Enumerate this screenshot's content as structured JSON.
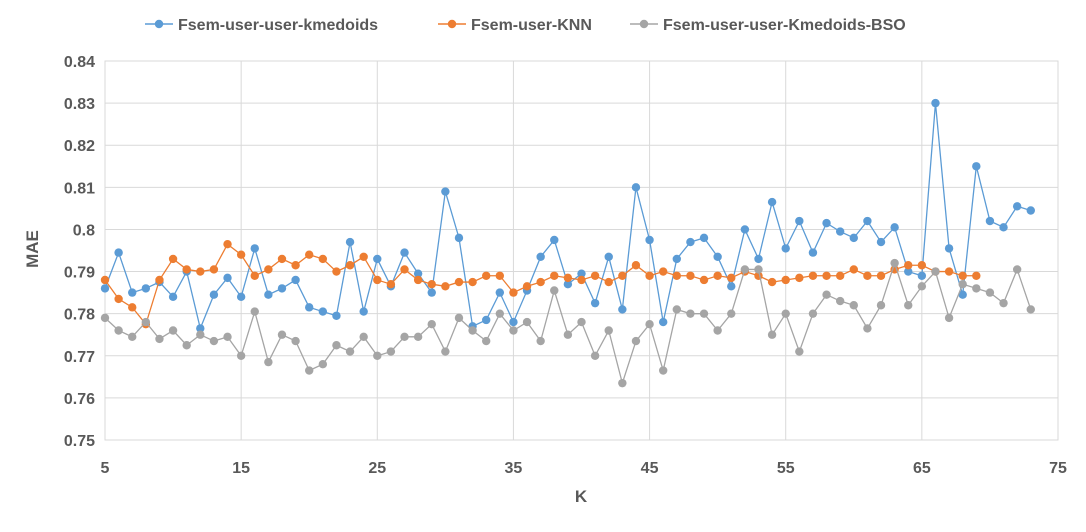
{
  "chart_data": {
    "type": "line",
    "xlabel": "K",
    "ylabel": "MAE",
    "xlim": [
      5,
      75
    ],
    "ylim": [
      0.75,
      0.84
    ],
    "xticks": [
      "5",
      "15",
      "25",
      "35",
      "45",
      "55",
      "65",
      "75"
    ],
    "yticks": [
      "0.75",
      "0.76",
      "0.77",
      "0.78",
      "0.79",
      "0.8",
      "0.81",
      "0.82",
      "0.83",
      "0.84"
    ],
    "grid": true,
    "legend_position": "top",
    "series": [
      {
        "name": "Fsem-user-user-kmedoids",
        "color": "#5b9bd5",
        "x": [
          5,
          6,
          7,
          8,
          9,
          10,
          11,
          12,
          13,
          14,
          15,
          16,
          17,
          18,
          19,
          20,
          21,
          22,
          23,
          24,
          25,
          26,
          27,
          28,
          29,
          30,
          31,
          32,
          33,
          34,
          35,
          36,
          37,
          38,
          39,
          40,
          41,
          42,
          43,
          44,
          45,
          46,
          47,
          48,
          49,
          50,
          51,
          52,
          53,
          54,
          55,
          56,
          57,
          58,
          59,
          60,
          61,
          62,
          63,
          64,
          65,
          66,
          67,
          68,
          69,
          70,
          71,
          72,
          73
        ],
        "y": [
          0.786,
          0.7945,
          0.785,
          0.786,
          0.7875,
          0.784,
          0.79,
          0.7765,
          0.7845,
          0.7885,
          0.784,
          0.7955,
          0.7845,
          0.786,
          0.788,
          0.7815,
          0.7805,
          0.7795,
          0.797,
          0.7805,
          0.793,
          0.7865,
          0.7945,
          0.7895,
          0.785,
          0.809,
          0.798,
          0.777,
          0.7785,
          0.785,
          0.778,
          0.7855,
          0.7935,
          0.7975,
          0.787,
          0.7895,
          0.7825,
          0.7935,
          0.781,
          0.81,
          0.7975,
          0.778,
          0.793,
          0.797,
          0.798,
          0.7935,
          0.7865,
          0.8,
          0.793,
          0.8065,
          0.7955,
          0.802,
          0.7945,
          0.8015,
          0.7995,
          0.798,
          0.802,
          0.797,
          0.8005,
          0.79,
          0.789,
          0.83,
          0.7955,
          0.7845,
          0.815,
          0.802,
          0.8005,
          0.8055,
          0.8045
        ]
      },
      {
        "name": "Fsem-user-KNN",
        "color": "#ed7d31",
        "x": [
          5,
          6,
          7,
          8,
          9,
          10,
          11,
          12,
          13,
          14,
          15,
          16,
          17,
          18,
          19,
          20,
          21,
          22,
          23,
          24,
          25,
          26,
          27,
          28,
          29,
          30,
          31,
          32,
          33,
          34,
          35,
          36,
          37,
          38,
          39,
          40,
          41,
          42,
          43,
          44,
          45,
          46,
          47,
          48,
          49,
          50,
          51,
          52,
          53,
          54,
          55,
          56,
          57,
          58,
          59,
          60,
          61,
          62,
          63,
          64,
          65,
          66,
          67,
          68,
          69
        ],
        "y": [
          0.788,
          0.7835,
          0.7815,
          0.7775,
          0.788,
          0.793,
          0.7905,
          0.79,
          0.7905,
          0.7965,
          0.794,
          0.789,
          0.7905,
          0.793,
          0.7915,
          0.794,
          0.793,
          0.79,
          0.7915,
          0.7935,
          0.788,
          0.787,
          0.7905,
          0.788,
          0.787,
          0.7865,
          0.7875,
          0.7875,
          0.789,
          0.789,
          0.785,
          0.7865,
          0.7875,
          0.789,
          0.7885,
          0.788,
          0.789,
          0.7875,
          0.789,
          0.7915,
          0.789,
          0.79,
          0.789,
          0.789,
          0.788,
          0.789,
          0.7885,
          0.79,
          0.789,
          0.7875,
          0.788,
          0.7885,
          0.789,
          0.789,
          0.789,
          0.7905,
          0.789,
          0.789,
          0.7905,
          0.7915,
          0.7915,
          0.79,
          0.79,
          0.789,
          0.789
        ]
      },
      {
        "name": "Fsem-user-user-Kmedoids-BSO",
        "color": "#a5a5a5",
        "x": [
          5,
          6,
          7,
          8,
          9,
          10,
          11,
          12,
          13,
          14,
          15,
          16,
          17,
          18,
          19,
          20,
          21,
          22,
          23,
          24,
          25,
          26,
          27,
          28,
          29,
          30,
          31,
          32,
          33,
          34,
          35,
          36,
          37,
          38,
          39,
          40,
          41,
          42,
          43,
          44,
          45,
          46,
          47,
          48,
          49,
          50,
          51,
          52,
          53,
          54,
          55,
          56,
          57,
          58,
          59,
          60,
          61,
          62,
          63,
          64,
          65,
          66,
          67,
          68,
          69,
          70,
          71,
          72,
          73
        ],
        "y": [
          0.779,
          0.776,
          0.7745,
          0.778,
          0.774,
          0.776,
          0.7725,
          0.775,
          0.7735,
          0.7745,
          0.77,
          0.7805,
          0.7685,
          0.775,
          0.7735,
          0.7665,
          0.768,
          0.7725,
          0.771,
          0.7745,
          0.77,
          0.771,
          0.7745,
          0.7745,
          0.7775,
          0.771,
          0.779,
          0.776,
          0.7735,
          0.78,
          0.776,
          0.778,
          0.7735,
          0.7855,
          0.775,
          0.778,
          0.77,
          0.776,
          0.7635,
          0.7735,
          0.7775,
          0.7665,
          0.781,
          0.78,
          0.78,
          0.776,
          0.78,
          0.7905,
          0.7905,
          0.775,
          0.78,
          0.771,
          0.78,
          0.7845,
          0.783,
          0.782,
          0.7765,
          0.782,
          0.792,
          0.782,
          0.7865,
          0.79,
          0.779,
          0.787,
          0.786,
          0.785,
          0.7825,
          0.7905,
          0.781
        ]
      }
    ]
  }
}
